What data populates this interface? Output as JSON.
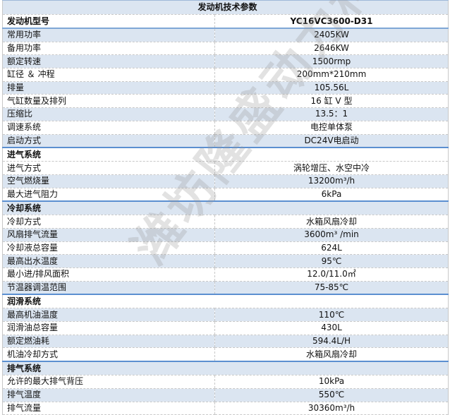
{
  "title": "发动机技术参数",
  "model": {
    "label": "发动机型号",
    "value": "YC16VC3600-D31"
  },
  "general": [
    {
      "label": "常用功率",
      "value": "2405KW"
    },
    {
      "label": "备用功率",
      "value": "2646KW"
    },
    {
      "label": "额定转速",
      "value": "1500rmp"
    },
    {
      "label": "缸径 ＆ 冲程",
      "value": "200mm*210mm"
    },
    {
      "label": "排量",
      "value": "105.56L"
    },
    {
      "label": "气缸数量及排列",
      "value": "16 缸 V 型"
    },
    {
      "label": "压缩比",
      "value": "13.5：1"
    },
    {
      "label": "调速系统",
      "value": "电控单体泵"
    },
    {
      "label": "启动方式",
      "value": "DC24V电启动"
    }
  ],
  "intake": {
    "header": "进气系统",
    "rows": [
      {
        "label": "进气方式",
        "value": "涡轮增压、水空中冷"
      },
      {
        "label": "空气燃烧量",
        "value": "13200m³/h"
      },
      {
        "label": "最大进气阻力",
        "value": "6kPa"
      }
    ]
  },
  "cooling": {
    "header": "冷却系统",
    "rows": [
      {
        "label": "冷却方式",
        "value": "水箱风扇冷却"
      },
      {
        "label": "风扇排气流量",
        "value": "3600m³  /min"
      },
      {
        "label": "冷却液总容量",
        "value": "624L"
      },
      {
        "label": "最高出水温度",
        "value": "95℃"
      },
      {
        "label": "最小进/排风面积",
        "value": "12.0/11.0㎡"
      },
      {
        "label": "节温器调温范围",
        "value": "75-85℃"
      }
    ]
  },
  "lubrication": {
    "header": "润滑系统",
    "rows": [
      {
        "label": "最高机油温度",
        "value": "110℃"
      },
      {
        "label": "润滑油总容量",
        "value": "430L"
      },
      {
        "label": "额定燃油耗",
        "value": "594.4L/H"
      },
      {
        "label": "机油冷却方式",
        "value": "水箱风扇冷却"
      }
    ]
  },
  "exhaust": {
    "header": "排气系统",
    "rows": [
      {
        "label": "允许的最大排气背压",
        "value": "10kPa"
      },
      {
        "label": "排气温度",
        "value": "550℃"
      },
      {
        "label": "排气流量",
        "value": "30360m³/h"
      }
    ]
  },
  "watermark": "潍坊隆盛动力科技",
  "colors": {
    "row_alt": "#dbe5f1",
    "section_border": "#5b8fd0"
  }
}
